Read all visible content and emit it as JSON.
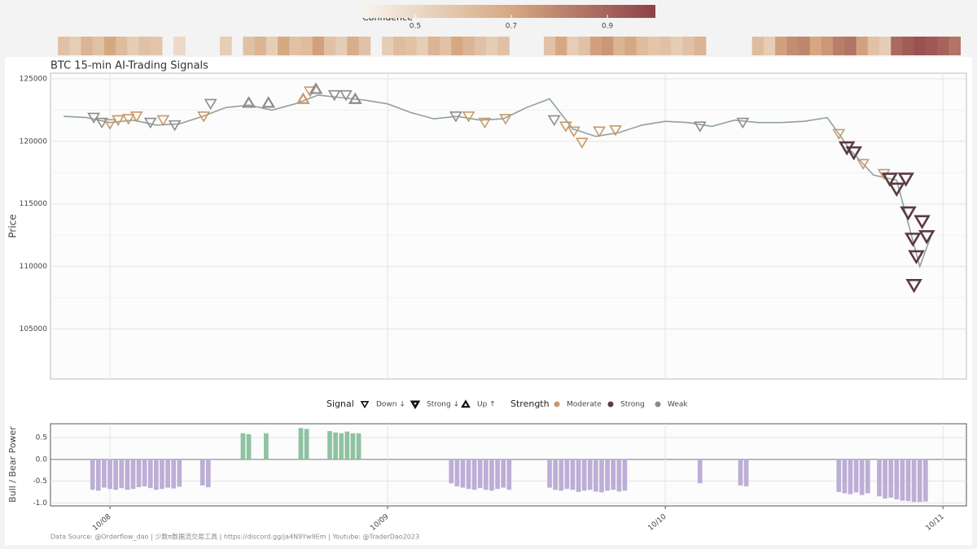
{
  "chart_data": [
    {
      "type": "line",
      "title": "BTC 15-min AI-Trading Signals",
      "y_label": "Price",
      "xlim": [
        -5.14,
        74.03
      ],
      "ylim": [
        101000,
        125450
      ],
      "yticks": [
        105000,
        110000,
        115000,
        120000,
        125000
      ],
      "grid": true,
      "x": [
        -4,
        -2,
        0,
        2,
        4,
        6,
        8,
        10,
        12,
        14,
        16,
        18,
        20,
        22,
        24,
        26,
        28,
        30,
        32,
        34,
        36,
        38,
        40,
        42,
        44,
        46,
        48,
        50,
        52,
        54,
        56,
        58,
        60,
        62,
        64,
        66,
        68,
        70,
        71
      ],
      "values": [
        122000,
        121900,
        121500,
        121700,
        121300,
        121400,
        122000,
        122700,
        122900,
        122500,
        123000,
        123700,
        123500,
        123300,
        123000,
        122300,
        121800,
        122000,
        121700,
        121800,
        122700,
        123400,
        121000,
        120400,
        120700,
        121300,
        121600,
        121500,
        121200,
        121700,
        121500,
        121500,
        121600,
        121900,
        119300,
        117300,
        116900,
        110000,
        112500
      ],
      "color": "#8fa39a",
      "signals": [
        {
          "x": -1.4,
          "y": 121900,
          "signal": "Down ↓",
          "strength": "Weak"
        },
        {
          "x": -0.7,
          "y": 121500,
          "signal": "Down ↓",
          "strength": "Weak"
        },
        {
          "x": 0,
          "y": 121400,
          "signal": "Down ↓",
          "strength": "Moderate"
        },
        {
          "x": 0.7,
          "y": 121700,
          "signal": "Down ↓",
          "strength": "Moderate"
        },
        {
          "x": 1.6,
          "y": 121800,
          "signal": "Down ↓",
          "strength": "Moderate"
        },
        {
          "x": 2.3,
          "y": 122000,
          "signal": "Down ↓",
          "strength": "Moderate"
        },
        {
          "x": 3.5,
          "y": 121500,
          "signal": "Down ↓",
          "strength": "Weak"
        },
        {
          "x": 4.6,
          "y": 121700,
          "signal": "Down ↓",
          "strength": "Moderate"
        },
        {
          "x": 5.6,
          "y": 121300,
          "signal": "Down ↓",
          "strength": "Weak"
        },
        {
          "x": 8.1,
          "y": 122000,
          "signal": "Down ↓",
          "strength": "Moderate"
        },
        {
          "x": 8.7,
          "y": 123000,
          "signal": "Down ↓",
          "strength": "Weak"
        },
        {
          "x": 12,
          "y": 123100,
          "signal": "Up ↑",
          "strength": "Weak"
        },
        {
          "x": 13.7,
          "y": 123100,
          "signal": "Up ↑",
          "strength": "Weak"
        },
        {
          "x": 16.7,
          "y": 123400,
          "signal": "Up ↑",
          "strength": "Moderate"
        },
        {
          "x": 17.3,
          "y": 124000,
          "signal": "Down ↓",
          "strength": "Moderate"
        },
        {
          "x": 17.8,
          "y": 124200,
          "signal": "Up ↑",
          "strength": "Weak"
        },
        {
          "x": 19.4,
          "y": 123700,
          "signal": "Down ↓",
          "strength": "Weak"
        },
        {
          "x": 20.4,
          "y": 123700,
          "signal": "Down ↓",
          "strength": "Weak"
        },
        {
          "x": 21.2,
          "y": 123400,
          "signal": "Up ↑",
          "strength": "Weak"
        },
        {
          "x": 29.9,
          "y": 122000,
          "signal": "Down ↓",
          "strength": "Weak"
        },
        {
          "x": 31,
          "y": 122000,
          "signal": "Down ↓",
          "strength": "Moderate"
        },
        {
          "x": 32.4,
          "y": 121500,
          "signal": "Down ↓",
          "strength": "Moderate"
        },
        {
          "x": 34.2,
          "y": 121800,
          "signal": "Down ↓",
          "strength": "Moderate"
        },
        {
          "x": 38.4,
          "y": 121700,
          "signal": "Down ↓",
          "strength": "Weak"
        },
        {
          "x": 39.4,
          "y": 121200,
          "signal": "Down ↓",
          "strength": "Moderate"
        },
        {
          "x": 40.1,
          "y": 120800,
          "signal": "Down ↓",
          "strength": "Moderate"
        },
        {
          "x": 40.8,
          "y": 119900,
          "signal": "Down ↓",
          "strength": "Moderate"
        },
        {
          "x": 42.3,
          "y": 120800,
          "signal": "Down ↓",
          "strength": "Moderate"
        },
        {
          "x": 43.7,
          "y": 120900,
          "signal": "Down ↓",
          "strength": "Moderate"
        },
        {
          "x": 51,
          "y": 121200,
          "signal": "Down ↓",
          "strength": "Weak"
        },
        {
          "x": 54.7,
          "y": 121500,
          "signal": "Down ↓",
          "strength": "Weak"
        },
        {
          "x": 63,
          "y": 120600,
          "signal": "Down ↓",
          "strength": "Moderate"
        },
        {
          "x": 63.7,
          "y": 119500,
          "signal": "Strong ↓",
          "strength": "Strong"
        },
        {
          "x": 64.3,
          "y": 119100,
          "signal": "Strong ↓",
          "strength": "Strong"
        },
        {
          "x": 65.1,
          "y": 118200,
          "signal": "Down ↓",
          "strength": "Moderate"
        },
        {
          "x": 66.9,
          "y": 117400,
          "signal": "Down ↓",
          "strength": "Moderate"
        },
        {
          "x": 67.4,
          "y": 117000,
          "signal": "Strong ↓",
          "strength": "Strong"
        },
        {
          "x": 68,
          "y": 116200,
          "signal": "Strong ↓",
          "strength": "Strong"
        },
        {
          "x": 68.8,
          "y": 117000,
          "signal": "Strong ↓",
          "strength": "Strong"
        },
        {
          "x": 69,
          "y": 114300,
          "signal": "Strong ↓",
          "strength": "Strong"
        },
        {
          "x": 69.4,
          "y": 112200,
          "signal": "Strong ↓",
          "strength": "Strong"
        },
        {
          "x": 69.7,
          "y": 110800,
          "signal": "Strong ↓",
          "strength": "Strong"
        },
        {
          "x": 69.5,
          "y": 108500,
          "signal": "Strong ↓",
          "strength": "Strong"
        },
        {
          "x": 70.2,
          "y": 113600,
          "signal": "Strong ↓",
          "strength": "Strong"
        },
        {
          "x": 70.6,
          "y": 112400,
          "signal": "Strong ↓",
          "strength": "Strong"
        }
      ],
      "signal_legend": {
        "title": "Signal",
        "items": [
          {
            "name": "Down ↓",
            "shape": "down",
            "stroke_width": 1.6
          },
          {
            "name": "Strong ↓",
            "shape": "down",
            "stroke_width": 2.6
          },
          {
            "name": "Up ↑",
            "shape": "up",
            "stroke_width": 2.2
          }
        ]
      },
      "strength_legend": {
        "title": "Strength",
        "items": [
          {
            "name": "Moderate",
            "color": "#c8986a"
          },
          {
            "name": "Strong",
            "color": "#5a3a44"
          },
          {
            "name": "Weak",
            "color": "#8c8c8c"
          }
        ]
      },
      "confidence": {
        "title": "Confidence",
        "lim": [
          0.39,
          1.0
        ],
        "ticks": [
          0.5,
          0.7,
          0.9
        ],
        "color_stops": [
          {
            "value": 0.39,
            "color": "#f8f4ee"
          },
          {
            "value": 0.7,
            "color": "#d6a882"
          },
          {
            "value": 1.0,
            "color": "#8e4048"
          }
        ],
        "x": [
          -4,
          -3,
          -2,
          -1,
          0,
          1,
          2,
          3,
          4,
          5,
          6,
          7,
          8,
          9,
          10,
          11,
          12,
          13,
          14,
          15,
          16,
          17,
          18,
          19,
          20,
          21,
          22,
          23,
          24,
          25,
          26,
          27,
          28,
          29,
          30,
          31,
          32,
          33,
          34,
          35,
          36,
          37,
          38,
          39,
          40,
          41,
          42,
          43,
          44,
          45,
          46,
          47,
          48,
          49,
          50,
          51,
          52,
          53,
          54,
          55,
          56,
          57,
          58,
          59,
          60,
          61,
          62,
          63,
          64,
          65,
          66,
          67,
          68,
          69,
          70,
          71,
          72,
          73
        ],
        "values": [
          0.6,
          0.55,
          0.65,
          0.6,
          0.7,
          0.62,
          0.55,
          0.6,
          0.58,
          null,
          0.5,
          null,
          null,
          null,
          0.55,
          null,
          0.6,
          0.65,
          0.55,
          0.7,
          0.6,
          0.62,
          0.72,
          0.6,
          0.55,
          0.68,
          0.6,
          null,
          0.55,
          0.62,
          0.6,
          0.55,
          0.65,
          0.6,
          0.7,
          0.65,
          0.6,
          0.55,
          0.6,
          null,
          null,
          null,
          0.6,
          0.7,
          0.55,
          0.6,
          0.72,
          0.75,
          0.65,
          0.7,
          0.62,
          0.58,
          0.6,
          0.55,
          0.6,
          0.65,
          null,
          null,
          null,
          null,
          0.62,
          0.55,
          0.72,
          0.78,
          0.8,
          0.7,
          0.75,
          0.82,
          0.85,
          0.72,
          0.6,
          0.55,
          0.88,
          0.92,
          0.95,
          0.93,
          0.9,
          0.85
        ]
      }
    },
    {
      "type": "bar",
      "y_label": "Bull / Bear Power",
      "xlim": [
        -5.14,
        74.03
      ],
      "ylim": [
        -1.07,
        0.82
      ],
      "yticks": [
        {
          "value": -1.0,
          "label": "-1.0"
        },
        -0.5,
        {
          "value": 0,
          "label": "0.0"
        },
        0.5
      ],
      "xticks": [
        {
          "value": 0,
          "label": "10/08"
        },
        {
          "value": 24,
          "label": "10/09"
        },
        {
          "value": 48,
          "label": "10/10"
        },
        {
          "value": 72,
          "label": "10/11"
        }
      ],
      "pos_color": "#8fc2a0",
      "neg_color": "#bcaed6",
      "x": [
        -1.5,
        -1,
        -0.5,
        0,
        0.5,
        1,
        1.5,
        2,
        2.5,
        3,
        3.5,
        4,
        4.5,
        5,
        5.5,
        6,
        8,
        8.5,
        11.5,
        12,
        13.5,
        16.5,
        17,
        19,
        19.5,
        20,
        20.5,
        21,
        21.5,
        29.5,
        30,
        30.5,
        31,
        31.5,
        32,
        32.5,
        33,
        33.5,
        34,
        34.5,
        38,
        38.5,
        39,
        39.5,
        40,
        40.5,
        41,
        41.5,
        42,
        42.5,
        43,
        43.5,
        44,
        44.5,
        51,
        54.5,
        55,
        63,
        63.5,
        64,
        64.5,
        65,
        65.5,
        66.5,
        67,
        67.5,
        68,
        68.5,
        69,
        69.5,
        70,
        70.5
      ],
      "values": [
        -0.7,
        -0.72,
        -0.65,
        -0.68,
        -0.7,
        -0.66,
        -0.7,
        -0.68,
        -0.64,
        -0.62,
        -0.66,
        -0.7,
        -0.68,
        -0.65,
        -0.67,
        -0.63,
        -0.6,
        -0.64,
        0.6,
        0.58,
        0.6,
        0.72,
        0.7,
        0.65,
        0.62,
        0.6,
        0.64,
        0.6,
        0.6,
        -0.55,
        -0.62,
        -0.65,
        -0.68,
        -0.7,
        -0.66,
        -0.7,
        -0.72,
        -0.68,
        -0.65,
        -0.7,
        -0.65,
        -0.7,
        -0.72,
        -0.68,
        -0.7,
        -0.75,
        -0.72,
        -0.7,
        -0.74,
        -0.76,
        -0.72,
        -0.7,
        -0.74,
        -0.72,
        -0.55,
        -0.6,
        -0.62,
        -0.75,
        -0.78,
        -0.8,
        -0.76,
        -0.82,
        -0.78,
        -0.85,
        -0.9,
        -0.88,
        -0.92,
        -0.95,
        -0.96,
        -0.98,
        -0.98,
        -0.97
      ]
    }
  ],
  "footer": "Data Source: @Orderflow_dao | 少数π数据流交易工具 | https://discord.gg/ja4N9Yw9Em | Youtube: @TraderDao2023"
}
